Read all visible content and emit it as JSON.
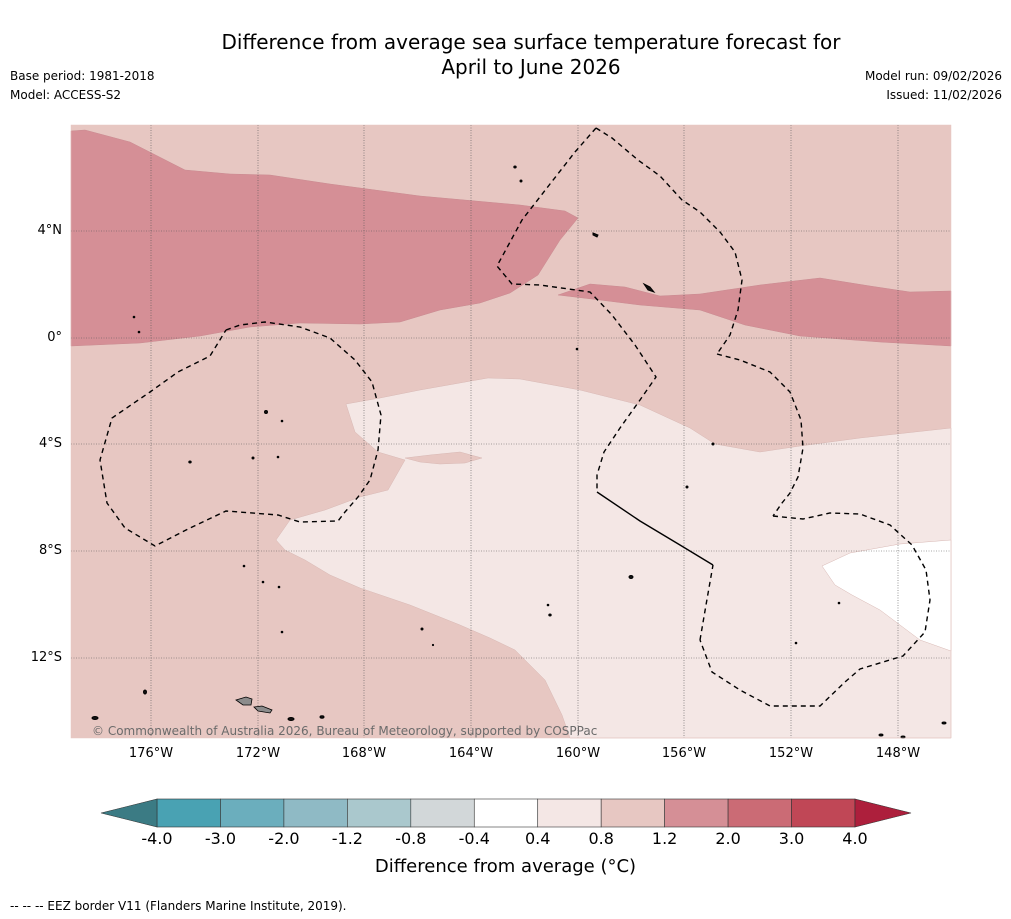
{
  "title": {
    "line1": "Difference from average sea surface temperature forecast for",
    "line2": "April to June 2026"
  },
  "meta": {
    "base_period": "Base period: 1981-2018",
    "model": "Model: ACCESS-S2",
    "model_run": "Model run: 09/02/2026",
    "issued": "Issued: 11/02/2026"
  },
  "map": {
    "latitude_labels": [
      "4°N",
      "0°",
      "4°S",
      "8°S",
      "12°S"
    ],
    "longitude_labels": [
      "176°W",
      "172°W",
      "168°W",
      "164°W",
      "160°W",
      "156°W",
      "152°W",
      "148°W"
    ],
    "copyright": "© Commonwealth of Australia 2026, Bureau of Meteorology, supported by COSPPac",
    "colors": {
      "band_1_2_to_2_0": "#d58f96",
      "band_0_8_to_1_2": "#e7c7c2",
      "band_0_4_to_0_8": "#f4e7e5",
      "band_neg0_4_to_0_4": "#ffffff"
    }
  },
  "colorbar": {
    "ticks": [
      "-4.0",
      "-3.0",
      "-2.0",
      "-1.2",
      "-0.8",
      "-0.4",
      "0.4",
      "0.8",
      "1.2",
      "2.0",
      "3.0",
      "4.0"
    ],
    "colors": [
      "#49a2b3",
      "#6baebd",
      "#8fbac5",
      "#aac8cd",
      "#d2d7d9",
      "#ffffff",
      "#f4e7e5",
      "#e7c7c2",
      "#d58f96",
      "#cb6b75",
      "#c04756"
    ],
    "under_color": "#3b7b84",
    "over_color": "#ad1f3c",
    "label": "Difference from average ($^\\circ$C)",
    "label_display": "Difference from average (°C)"
  },
  "footer": "--  --  -- EEZ border V11 (Flanders Marine Institute, 2019)."
}
